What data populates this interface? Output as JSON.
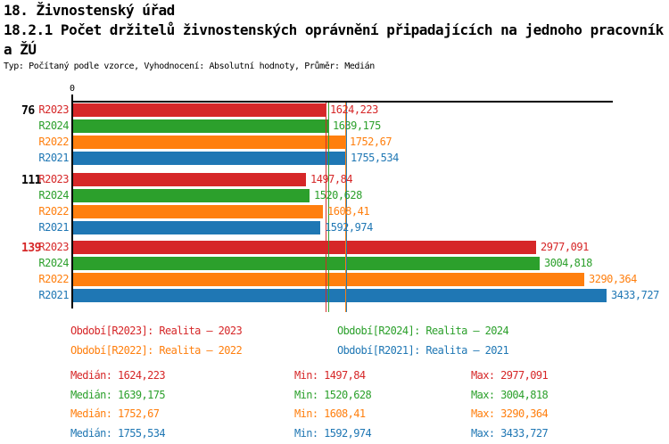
{
  "header": {
    "line1": "18. Živnostenský úřad",
    "line2": "18.2.1 Počet držitelů živnostenských oprávnění připadajících na jednoho pracovník",
    "line3": "a ŽÚ",
    "subtitle": "Typ: Počítaný podle vzorce, Vyhodnocení: Absolutní hodnoty, Průměr: Medián"
  },
  "axis": {
    "zero_label": "0"
  },
  "colors": {
    "R2023": "#d62728",
    "R2024": "#2ca02c",
    "R2022": "#ff7f0e",
    "R2021": "#1f77b4",
    "axis": "#000000"
  },
  "chart_data": {
    "type": "bar",
    "orientation": "horizontal",
    "title": "18.2.1 Počet držitelů živnostenských oprávnění připadajících na jednoho pracovníka ŽÚ",
    "xlabel": "",
    "ylabel": "",
    "x_axis": {
      "min": 0,
      "ticks": [
        0
      ],
      "approx_max": 3470
    },
    "grid": false,
    "series_order": [
      "R2023",
      "R2024",
      "R2022",
      "R2021"
    ],
    "series_colors": {
      "R2023": "#d62728",
      "R2024": "#2ca02c",
      "R2022": "#ff7f0e",
      "R2021": "#1f77b4"
    },
    "groups": [
      {
        "label": "76",
        "label_color": "#000000",
        "bars": [
          {
            "series": "R2023",
            "value": 1624.223,
            "display": "1624,223"
          },
          {
            "series": "R2024",
            "value": 1639.175,
            "display": "1639,175"
          },
          {
            "series": "R2022",
            "value": 1752.67,
            "display": "1752,67"
          },
          {
            "series": "R2021",
            "value": 1755.534,
            "display": "1755,534"
          }
        ]
      },
      {
        "label": "111",
        "label_color": "#000000",
        "bars": [
          {
            "series": "R2023",
            "value": 1497.84,
            "display": "1497,84"
          },
          {
            "series": "R2024",
            "value": 1520.628,
            "display": "1520,628"
          },
          {
            "series": "R2022",
            "value": 1608.41,
            "display": "1608,41"
          },
          {
            "series": "R2021",
            "value": 1592.974,
            "display": "1592,974"
          }
        ]
      },
      {
        "label": "139",
        "label_color": "#d62728",
        "bars": [
          {
            "series": "R2023",
            "value": 2977.091,
            "display": "2977,091"
          },
          {
            "series": "R2024",
            "value": 3004.818,
            "display": "3004,818"
          },
          {
            "series": "R2022",
            "value": 3290.364,
            "display": "3290,364"
          },
          {
            "series": "R2021",
            "value": 3433.727,
            "display": "3433,727"
          }
        ]
      }
    ],
    "median_lines": [
      {
        "series": "R2023",
        "value": 1624.223
      },
      {
        "series": "R2024",
        "value": 1639.175
      },
      {
        "series": "R2022",
        "value": 1752.67
      },
      {
        "series": "R2021",
        "value": 1755.534
      }
    ]
  },
  "legend": {
    "items": [
      {
        "series": "R2023",
        "text": "Období[R2023]: Realita – 2023",
        "color": "#d62728"
      },
      {
        "series": "R2024",
        "text": "Období[R2024]: Realita – 2024",
        "color": "#2ca02c"
      },
      {
        "series": "R2022",
        "text": "Období[R2022]: Realita – 2022",
        "color": "#ff7f0e"
      },
      {
        "series": "R2021",
        "text": "Období[R2021]: Realita – 2021",
        "color": "#1f77b4"
      }
    ]
  },
  "stats": {
    "rows": [
      {
        "series": "R2023",
        "color": "#d62728",
        "median_label": "Medián: 1624,223",
        "min_label": "Min: 1497,84",
        "max_label": "Max: 2977,091"
      },
      {
        "series": "R2024",
        "color": "#2ca02c",
        "median_label": "Medián: 1639,175",
        "min_label": "Min: 1520,628",
        "max_label": "Max: 3004,818"
      },
      {
        "series": "R2022",
        "color": "#ff7f0e",
        "median_label": "Medián: 1752,67",
        "min_label": "Min: 1608,41",
        "max_label": "Max: 3290,364"
      },
      {
        "series": "R2021",
        "color": "#1f77b4",
        "median_label": "Medián: 1755,534",
        "min_label": "Min: 1592,974",
        "max_label": "Max: 3433,727"
      }
    ]
  }
}
